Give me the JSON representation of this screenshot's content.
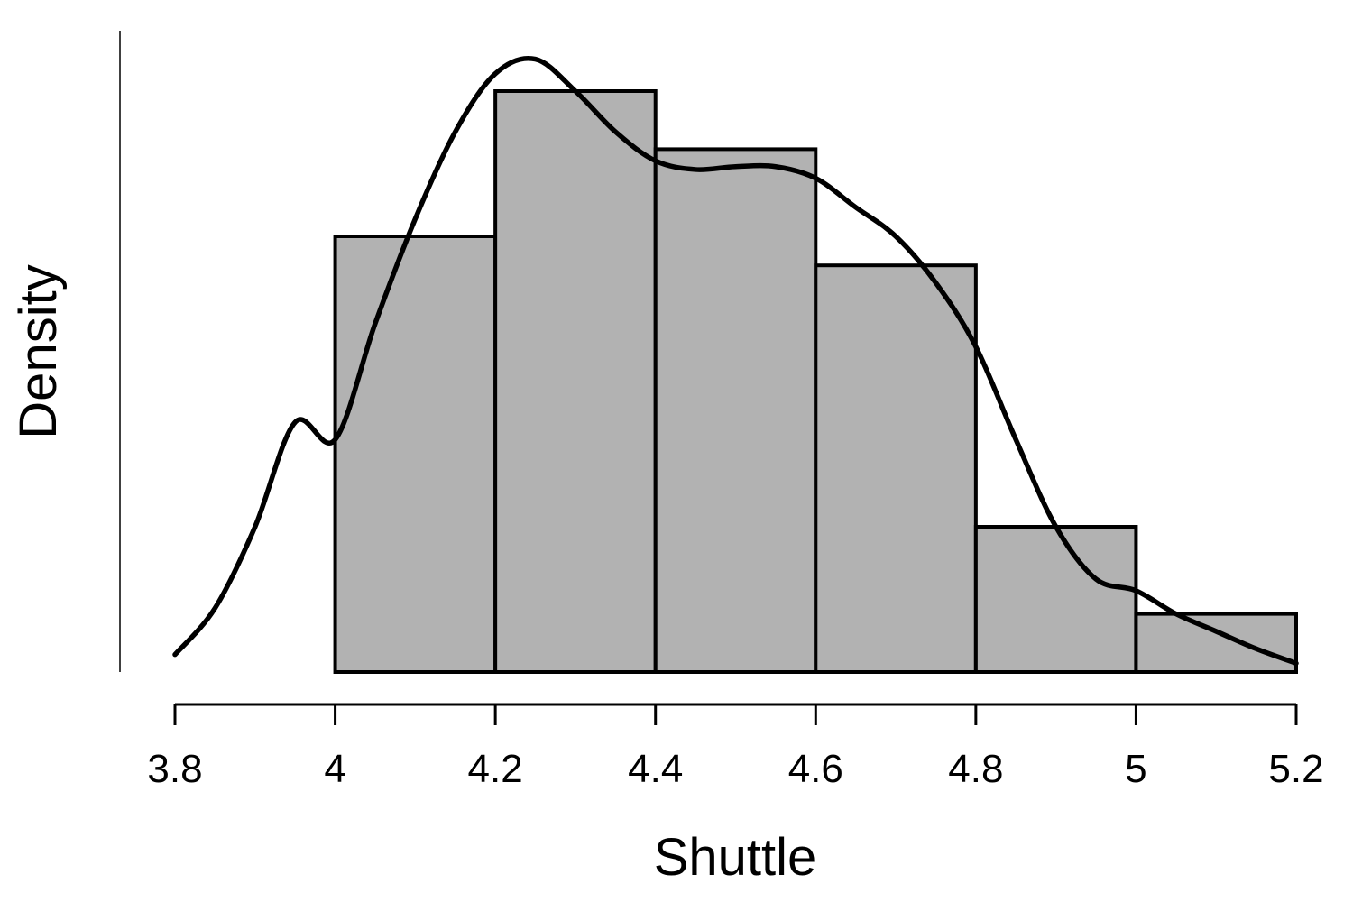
{
  "chart_data": {
    "type": "bar",
    "subtype": "histogram-with-density",
    "title": "",
    "xlabel": "Shuttle",
    "ylabel": "Density",
    "xlim": [
      3.8,
      5.2
    ],
    "x_ticks": [
      3.8,
      4.0,
      4.2,
      4.4,
      4.6,
      4.8,
      5.0,
      5.2
    ],
    "x_tick_labels": [
      "3.8",
      "4",
      "4.2",
      "4.4",
      "4.6",
      "4.8",
      "5",
      "5.2"
    ],
    "y_ticks_shown": false,
    "bar_color": "#b2b2b2",
    "line_color": "#000000",
    "bins": [
      {
        "start": 4.0,
        "end": 4.2,
        "value": 0.75
      },
      {
        "start": 4.2,
        "end": 4.4,
        "value": 1.0
      },
      {
        "start": 4.4,
        "end": 4.6,
        "value": 0.9
      },
      {
        "start": 4.6,
        "end": 4.8,
        "value": 0.7
      },
      {
        "start": 4.8,
        "end": 5.0,
        "value": 0.25
      },
      {
        "start": 5.0,
        "end": 5.2,
        "value": 0.1
      }
    ],
    "density_curve": {
      "x": [
        3.8,
        3.85,
        3.9,
        3.95,
        4.0,
        4.05,
        4.1,
        4.15,
        4.2,
        4.25,
        4.3,
        4.35,
        4.4,
        4.45,
        4.5,
        4.55,
        4.6,
        4.65,
        4.7,
        4.75,
        4.8,
        4.85,
        4.9,
        4.95,
        5.0,
        5.05,
        5.1,
        5.15,
        5.2
      ],
      "y": [
        0.03,
        0.11,
        0.25,
        0.43,
        0.4,
        0.6,
        0.78,
        0.93,
        1.03,
        1.055,
        1.0,
        0.93,
        0.88,
        0.865,
        0.87,
        0.87,
        0.85,
        0.8,
        0.75,
        0.67,
        0.56,
        0.4,
        0.25,
        0.16,
        0.14,
        0.1,
        0.07,
        0.04,
        0.015
      ]
    }
  }
}
